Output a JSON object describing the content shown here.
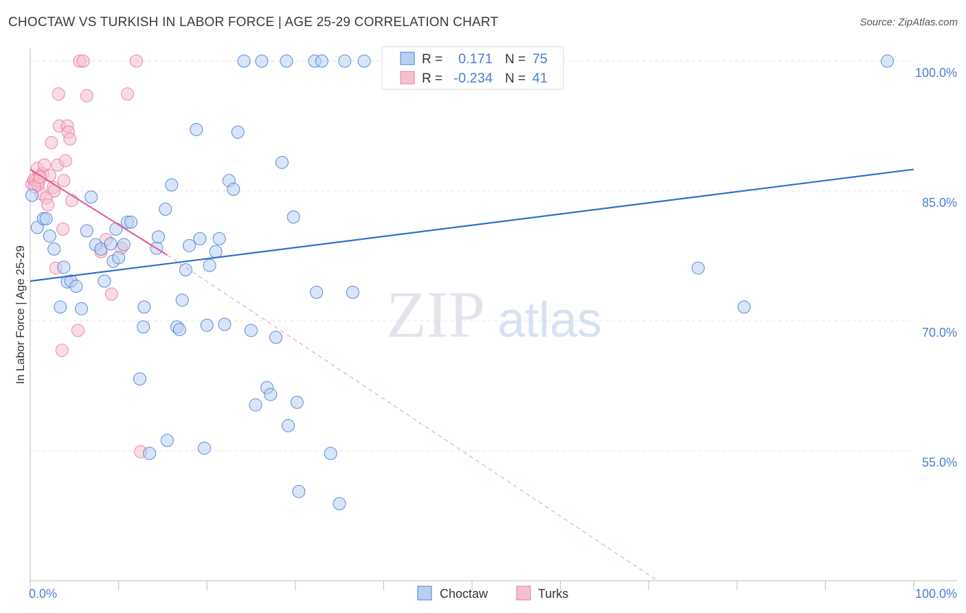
{
  "header": {
    "title": "CHOCTAW VS TURKISH IN LABOR FORCE | AGE 25-29 CORRELATION CHART",
    "source": "Source: ZipAtlas.com"
  },
  "watermark": {
    "zip": "ZIP",
    "atlas": "atlas"
  },
  "colors": {
    "blue": "#4a7fd4",
    "blue_fill": "#b9d0f2",
    "blue_line": "#2f6fd0",
    "pink": "#e87aa0",
    "pink_fill": "#f6bfd0",
    "pink_line": "#e0609a",
    "axis_text": "#4a7fd4"
  },
  "legend_top": {
    "rows": [
      {
        "r_label": "R =",
        "r_value": "0.171",
        "n_label": "N =",
        "n_value": "75"
      },
      {
        "r_label": "R =",
        "r_value": "-0.234",
        "n_label": "N =",
        "n_value": "41"
      }
    ]
  },
  "chart_data": {
    "type": "scatter",
    "title": "CHOCTAW VS TURKISH IN LABOR FORCE | AGE 25-29 CORRELATION CHART",
    "ylabel": "In Labor Force | Age 25-29",
    "xlabel": "",
    "xlim": [
      0,
      100
    ],
    "ylim": [
      40,
      101.5
    ],
    "x_tick_labels": [
      "0.0%",
      "100.0%"
    ],
    "y_ticks": [
      55,
      70,
      85,
      100
    ],
    "y_tick_labels": [
      "55.0%",
      "70.0%",
      "85.0%",
      "100.0%"
    ],
    "grid": true,
    "legend_position": "bottom-center",
    "series": [
      {
        "name": "Choctaw",
        "color": "#4a7fd4",
        "r": 0.171,
        "n": 75,
        "trend": {
          "x": [
            0,
            100
          ],
          "y": [
            74.6,
            87.5
          ],
          "style": "solid"
        },
        "points": [
          [
            0.2,
            84.5
          ],
          [
            0.8,
            80.8
          ],
          [
            1.5,
            81.8
          ],
          [
            1.8,
            81.8
          ],
          [
            2.2,
            79.8
          ],
          [
            2.7,
            78.3
          ],
          [
            3.4,
            71.6
          ],
          [
            3.8,
            76.2
          ],
          [
            4.2,
            74.5
          ],
          [
            4.6,
            74.6
          ],
          [
            5.2,
            74.0
          ],
          [
            5.8,
            71.4
          ],
          [
            6.4,
            80.4
          ],
          [
            6.9,
            84.3
          ],
          [
            7.4,
            78.8
          ],
          [
            8.0,
            78.3
          ],
          [
            8.4,
            74.6
          ],
          [
            9.1,
            78.9
          ],
          [
            9.4,
            76.9
          ],
          [
            9.7,
            80.6
          ],
          [
            10.0,
            77.3
          ],
          [
            10.6,
            78.8
          ],
          [
            11.0,
            81.4
          ],
          [
            11.4,
            81.4
          ],
          [
            12.4,
            63.3
          ],
          [
            12.8,
            69.3
          ],
          [
            12.9,
            71.6
          ],
          [
            13.5,
            54.7
          ],
          [
            14.3,
            78.4
          ],
          [
            14.5,
            79.7
          ],
          [
            15.3,
            82.9
          ],
          [
            15.5,
            56.2
          ],
          [
            16.0,
            85.7
          ],
          [
            16.6,
            69.3
          ],
          [
            16.9,
            69.0
          ],
          [
            17.2,
            72.4
          ],
          [
            17.6,
            75.9
          ],
          [
            18.0,
            78.7
          ],
          [
            18.8,
            92.1
          ],
          [
            19.2,
            79.5
          ],
          [
            19.7,
            55.3
          ],
          [
            20.0,
            69.5
          ],
          [
            20.3,
            76.4
          ],
          [
            21.0,
            78.0
          ],
          [
            21.4,
            79.5
          ],
          [
            22.0,
            69.6
          ],
          [
            22.5,
            86.2
          ],
          [
            23.0,
            85.2
          ],
          [
            23.5,
            91.8
          ],
          [
            24.2,
            100.0
          ],
          [
            25.0,
            68.9
          ],
          [
            25.5,
            60.3
          ],
          [
            26.2,
            100.0
          ],
          [
            26.8,
            62.3
          ],
          [
            27.2,
            61.5
          ],
          [
            27.8,
            68.1
          ],
          [
            28.5,
            88.3
          ],
          [
            29.0,
            100.0
          ],
          [
            29.2,
            57.9
          ],
          [
            29.8,
            82.0
          ],
          [
            30.2,
            60.6
          ],
          [
            30.4,
            50.3
          ],
          [
            32.2,
            100.0
          ],
          [
            32.4,
            73.3
          ],
          [
            33.0,
            100.0
          ],
          [
            34.0,
            54.7
          ],
          [
            35.0,
            48.9
          ],
          [
            35.6,
            100.0
          ],
          [
            36.5,
            73.3
          ],
          [
            37.8,
            100.0
          ],
          [
            45.8,
            100.0
          ],
          [
            75.6,
            76.1
          ],
          [
            80.8,
            71.6
          ],
          [
            97.0,
            100.0
          ]
        ]
      },
      {
        "name": "Turks",
        "color": "#e87aa0",
        "r": -0.234,
        "n": 41,
        "trend": {
          "x": [
            0,
            15.5
          ],
          "y": [
            87.5,
            77.6
          ],
          "style": "solid",
          "dashed_extension": {
            "x": [
              15.5,
              71.0
            ],
            "y": [
              77.6,
              40.0
            ]
          }
        },
        "points": [
          [
            0.2,
            85.8
          ],
          [
            0.4,
            86.3
          ],
          [
            0.6,
            86.2
          ],
          [
            0.8,
            87.6
          ],
          [
            0.9,
            85.7
          ],
          [
            1.0,
            86.2
          ],
          [
            1.2,
            84.7
          ],
          [
            1.4,
            87.0
          ],
          [
            1.6,
            88.0
          ],
          [
            1.8,
            84.2
          ],
          [
            2.0,
            83.4
          ],
          [
            2.2,
            86.8
          ],
          [
            2.4,
            90.6
          ],
          [
            2.6,
            85.4
          ],
          [
            2.9,
            76.1
          ],
          [
            3.1,
            88.0
          ],
          [
            3.2,
            96.2
          ],
          [
            3.3,
            92.5
          ],
          [
            3.6,
            66.6
          ],
          [
            3.7,
            80.6
          ],
          [
            3.8,
            86.2
          ],
          [
            4.0,
            88.5
          ],
          [
            4.2,
            92.5
          ],
          [
            4.3,
            91.8
          ],
          [
            4.5,
            91.0
          ],
          [
            4.7,
            83.9
          ],
          [
            5.4,
            68.9
          ],
          [
            5.6,
            100.0
          ],
          [
            6.0,
            100.0
          ],
          [
            6.4,
            96.0
          ],
          [
            8.0,
            78.0
          ],
          [
            8.6,
            79.4
          ],
          [
            9.2,
            73.1
          ],
          [
            10.3,
            78.4
          ],
          [
            11.0,
            96.2
          ],
          [
            12.0,
            100.0
          ],
          [
            12.5,
            54.9
          ],
          [
            0.5,
            85.5
          ],
          [
            1.1,
            86.6
          ],
          [
            2.7,
            85.0
          ]
        ]
      }
    ]
  }
}
